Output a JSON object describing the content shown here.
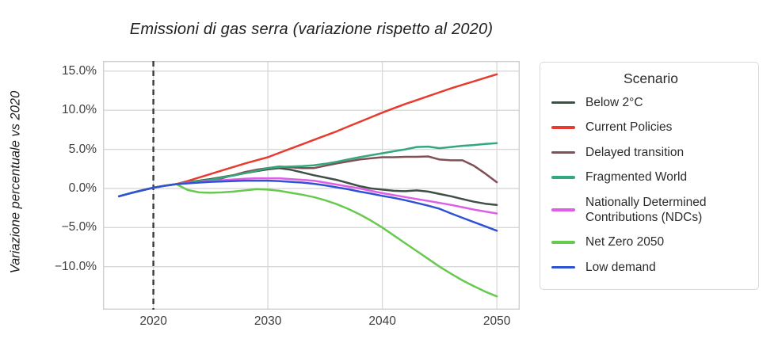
{
  "title": "Emissioni di gas serra (variazione rispetto al 2020)",
  "ylabel": "Variazione percentuale vs 2020",
  "legend": {
    "title": "Scenario",
    "items": [
      {
        "label": "Below 2°C",
        "color": "#3f4f46"
      },
      {
        "label": "Current Policies",
        "color": "#e63b2e"
      },
      {
        "label": "Delayed transition",
        "color": "#815055"
      },
      {
        "label": "Fragmented World",
        "color": "#33a87c"
      },
      {
        "label": "Nationally Determined Contributions (NDCs)",
        "color": "#de5fe6"
      },
      {
        "label": "Net Zero 2050",
        "color": "#68c94f"
      },
      {
        "label": "Low demand",
        "color": "#2f52d4"
      }
    ]
  },
  "chart_data": {
    "type": "line",
    "title": "Emissioni di gas serra (variazione rispetto al 2020)",
    "xlabel": "",
    "ylabel": "Variazione percentuale vs 2020",
    "grid": true,
    "legend_position": "right",
    "xlim": [
      2015.6,
      2052.0
    ],
    "ylim": [
      -15.5,
      16.3
    ],
    "vline_x": 2020,
    "x_ticks": [
      {
        "value": 2020,
        "label": "2020"
      },
      {
        "value": 2030,
        "label": "2030"
      },
      {
        "value": 2040,
        "label": "2040"
      },
      {
        "value": 2050,
        "label": "2050"
      }
    ],
    "y_ticks": [
      {
        "value": 15,
        "label": "15.0%"
      },
      {
        "value": 10,
        "label": "10.0%"
      },
      {
        "value": 5,
        "label": "5.0%"
      },
      {
        "value": 0,
        "label": "0.0%"
      },
      {
        "value": -5,
        "label": "−5.0%"
      },
      {
        "value": -10,
        "label": "−10.0%"
      }
    ],
    "history_note": "all scenarios share the same historical path 2017-2022",
    "history": [
      [
        2017,
        -1.0
      ],
      [
        2018,
        -0.6
      ],
      [
        2019,
        -0.25
      ],
      [
        2020,
        0.1
      ],
      [
        2021,
        0.35
      ],
      [
        2022,
        0.55
      ]
    ],
    "series": [
      {
        "name": "Below 2°C",
        "color": "#3f4f46",
        "points": [
          [
            2023,
            0.8
          ],
          [
            2024,
            1.0
          ],
          [
            2025,
            1.2
          ],
          [
            2026,
            1.45
          ],
          [
            2027,
            1.7
          ],
          [
            2028,
            1.95
          ],
          [
            2029,
            2.2
          ],
          [
            2030,
            2.45
          ],
          [
            2031,
            2.6
          ],
          [
            2032,
            2.4
          ],
          [
            2033,
            2.05
          ],
          [
            2034,
            1.7
          ],
          [
            2035,
            1.4
          ],
          [
            2036,
            1.1
          ],
          [
            2037,
            0.7
          ],
          [
            2038,
            0.3
          ],
          [
            2039,
            0.0
          ],
          [
            2040,
            -0.15
          ],
          [
            2041,
            -0.3
          ],
          [
            2042,
            -0.35
          ],
          [
            2043,
            -0.25
          ],
          [
            2044,
            -0.4
          ],
          [
            2045,
            -0.7
          ],
          [
            2046,
            -1.0
          ],
          [
            2047,
            -1.35
          ],
          [
            2048,
            -1.7
          ],
          [
            2049,
            -1.95
          ],
          [
            2050,
            -2.1
          ]
        ]
      },
      {
        "name": "Current Policies",
        "color": "#e63b2e",
        "points": [
          [
            2023,
            0.95
          ],
          [
            2024,
            1.4
          ],
          [
            2025,
            1.85
          ],
          [
            2026,
            2.3
          ],
          [
            2027,
            2.75
          ],
          [
            2028,
            3.2
          ],
          [
            2029,
            3.6
          ],
          [
            2030,
            4.0
          ],
          [
            2031,
            4.55
          ],
          [
            2032,
            5.1
          ],
          [
            2033,
            5.65
          ],
          [
            2034,
            6.2
          ],
          [
            2035,
            6.75
          ],
          [
            2036,
            7.3
          ],
          [
            2037,
            7.9
          ],
          [
            2038,
            8.5
          ],
          [
            2039,
            9.1
          ],
          [
            2040,
            9.7
          ],
          [
            2041,
            10.25
          ],
          [
            2042,
            10.8
          ],
          [
            2043,
            11.3
          ],
          [
            2044,
            11.8
          ],
          [
            2045,
            12.3
          ],
          [
            2046,
            12.8
          ],
          [
            2047,
            13.25
          ],
          [
            2048,
            13.7
          ],
          [
            2049,
            14.15
          ],
          [
            2050,
            14.6
          ]
        ]
      },
      {
        "name": "Delayed transition",
        "color": "#815055",
        "points": [
          [
            2023,
            0.7
          ],
          [
            2024,
            0.85
          ],
          [
            2025,
            1.0
          ],
          [
            2026,
            1.3
          ],
          [
            2027,
            1.7
          ],
          [
            2028,
            2.1
          ],
          [
            2029,
            2.4
          ],
          [
            2030,
            2.6
          ],
          [
            2031,
            2.8
          ],
          [
            2032,
            2.7
          ],
          [
            2033,
            2.6
          ],
          [
            2034,
            2.6
          ],
          [
            2035,
            2.9
          ],
          [
            2036,
            3.2
          ],
          [
            2037,
            3.45
          ],
          [
            2038,
            3.7
          ],
          [
            2039,
            3.85
          ],
          [
            2040,
            4.0
          ],
          [
            2041,
            4.0
          ],
          [
            2042,
            4.05
          ],
          [
            2043,
            4.05
          ],
          [
            2044,
            4.1
          ],
          [
            2045,
            3.7
          ],
          [
            2046,
            3.6
          ],
          [
            2047,
            3.6
          ],
          [
            2048,
            2.9
          ],
          [
            2049,
            1.9
          ],
          [
            2050,
            0.8
          ]
        ]
      },
      {
        "name": "Fragmented World",
        "color": "#33a87c",
        "points": [
          [
            2023,
            0.75
          ],
          [
            2024,
            0.95
          ],
          [
            2025,
            1.1
          ],
          [
            2026,
            1.4
          ],
          [
            2027,
            1.65
          ],
          [
            2028,
            1.95
          ],
          [
            2029,
            2.25
          ],
          [
            2030,
            2.6
          ],
          [
            2031,
            2.75
          ],
          [
            2032,
            2.8
          ],
          [
            2033,
            2.85
          ],
          [
            2034,
            2.95
          ],
          [
            2035,
            3.15
          ],
          [
            2036,
            3.4
          ],
          [
            2037,
            3.7
          ],
          [
            2038,
            4.0
          ],
          [
            2039,
            4.25
          ],
          [
            2040,
            4.5
          ],
          [
            2041,
            4.75
          ],
          [
            2042,
            5.0
          ],
          [
            2043,
            5.3
          ],
          [
            2044,
            5.35
          ],
          [
            2045,
            5.15
          ],
          [
            2046,
            5.3
          ],
          [
            2047,
            5.45
          ],
          [
            2048,
            5.55
          ],
          [
            2049,
            5.7
          ],
          [
            2050,
            5.8
          ]
        ]
      },
      {
        "name": "Nationally Determined Contributions (NDCs)",
        "color": "#de5fe6",
        "points": [
          [
            2023,
            0.7
          ],
          [
            2024,
            0.8
          ],
          [
            2025,
            0.95
          ],
          [
            2026,
            1.05
          ],
          [
            2027,
            1.15
          ],
          [
            2028,
            1.25
          ],
          [
            2029,
            1.3
          ],
          [
            2030,
            1.3
          ],
          [
            2031,
            1.3
          ],
          [
            2032,
            1.2
          ],
          [
            2033,
            1.1
          ],
          [
            2034,
            1.0
          ],
          [
            2035,
            0.75
          ],
          [
            2036,
            0.5
          ],
          [
            2037,
            0.25
          ],
          [
            2038,
            0.0
          ],
          [
            2039,
            -0.3
          ],
          [
            2040,
            -0.6
          ],
          [
            2041,
            -0.85
          ],
          [
            2042,
            -1.1
          ],
          [
            2043,
            -1.35
          ],
          [
            2044,
            -1.6
          ],
          [
            2045,
            -1.85
          ],
          [
            2046,
            -2.1
          ],
          [
            2047,
            -2.4
          ],
          [
            2048,
            -2.7
          ],
          [
            2049,
            -2.95
          ],
          [
            2050,
            -3.2
          ]
        ]
      },
      {
        "name": "Net Zero 2050",
        "color": "#68c94f",
        "points": [
          [
            2023,
            -0.2
          ],
          [
            2024,
            -0.5
          ],
          [
            2025,
            -0.55
          ],
          [
            2026,
            -0.5
          ],
          [
            2027,
            -0.4
          ],
          [
            2028,
            -0.25
          ],
          [
            2029,
            -0.1
          ],
          [
            2030,
            -0.15
          ],
          [
            2031,
            -0.3
          ],
          [
            2032,
            -0.55
          ],
          [
            2033,
            -0.8
          ],
          [
            2034,
            -1.1
          ],
          [
            2035,
            -1.5
          ],
          [
            2036,
            -2.0
          ],
          [
            2037,
            -2.6
          ],
          [
            2038,
            -3.3
          ],
          [
            2039,
            -4.1
          ],
          [
            2040,
            -5.0
          ],
          [
            2041,
            -6.0
          ],
          [
            2042,
            -7.0
          ],
          [
            2043,
            -8.0
          ],
          [
            2044,
            -9.0
          ],
          [
            2045,
            -10.0
          ],
          [
            2046,
            -10.9
          ],
          [
            2047,
            -11.75
          ],
          [
            2048,
            -12.5
          ],
          [
            2049,
            -13.2
          ],
          [
            2050,
            -13.8
          ]
        ]
      },
      {
        "name": "Low demand",
        "color": "#2f52d4",
        "points": [
          [
            2023,
            0.65
          ],
          [
            2024,
            0.75
          ],
          [
            2025,
            0.85
          ],
          [
            2026,
            0.9
          ],
          [
            2027,
            0.95
          ],
          [
            2028,
            1.0
          ],
          [
            2029,
            1.0
          ],
          [
            2030,
            1.0
          ],
          [
            2031,
            0.95
          ],
          [
            2032,
            0.85
          ],
          [
            2033,
            0.75
          ],
          [
            2034,
            0.6
          ],
          [
            2035,
            0.4
          ],
          [
            2036,
            0.15
          ],
          [
            2037,
            -0.1
          ],
          [
            2038,
            -0.4
          ],
          [
            2039,
            -0.65
          ],
          [
            2040,
            -0.95
          ],
          [
            2041,
            -1.2
          ],
          [
            2042,
            -1.5
          ],
          [
            2043,
            -1.85
          ],
          [
            2044,
            -2.2
          ],
          [
            2045,
            -2.6
          ],
          [
            2046,
            -3.2
          ],
          [
            2047,
            -3.75
          ],
          [
            2048,
            -4.3
          ],
          [
            2049,
            -4.85
          ],
          [
            2050,
            -5.4
          ]
        ]
      }
    ],
    "colors": {
      "grid": "#d8d8d8",
      "plot_border": "#cfcfcf",
      "vline": "#3a3a3a",
      "background": "#ffffff"
    }
  }
}
